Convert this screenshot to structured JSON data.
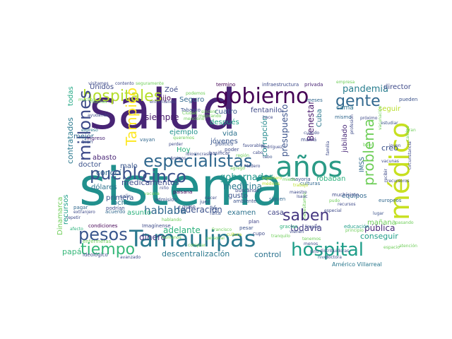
{
  "words": [
    {
      "text": "salud",
      "color": "#482475"
    },
    {
      "text": "sistema",
      "color": "#21908d"
    },
    {
      "text": "Tamaulipas",
      "color": "#2a788e"
    },
    {
      "text": "años",
      "color": "#2a9a86"
    },
    {
      "text": "médico",
      "color": "#c8e020"
    },
    {
      "text": "gobierno",
      "color": "#440154"
    },
    {
      "text": "especialistas",
      "color": "#31688e"
    },
    {
      "text": "pueblo",
      "color": "#3b528b"
    },
    {
      "text": "hospitales",
      "color": "#b5de2b"
    },
    {
      "text": "hospital",
      "color": "#1f9e89"
    },
    {
      "text": "millones",
      "color": "#3e4a89"
    },
    {
      "text": "pesos",
      "color": "#39568c"
    },
    {
      "text": "tiempo",
      "color": "#35b779"
    },
    {
      "text": "cinco",
      "color": "#3b528b"
    },
    {
      "text": "gente",
      "color": "#31688e"
    },
    {
      "text": "saben",
      "color": "#453781"
    },
    {
      "text": "problema",
      "color": "#6ece58"
    },
    {
      "text": "Tampico",
      "color": "#fde725"
    },
    {
      "text": "pandemia",
      "color": "#287d8e"
    },
    {
      "text": "Zoé",
      "color": "#3e4a89"
    },
    {
      "text": "hijo",
      "color": "#440154"
    },
    {
      "text": "Hoy",
      "color": "#2db27d"
    },
    {
      "text": "siempre",
      "color": "#481a6c"
    },
    {
      "text": "gobernador",
      "color": "#1f968b"
    },
    {
      "text": "medicina",
      "color": "#2a788e"
    },
    {
      "text": "federación",
      "color": "#3b528b"
    },
    {
      "text": "hablaba",
      "color": "#31688e"
    },
    {
      "text": "adelante",
      "color": "#2db27d"
    },
    {
      "text": "todavía",
      "color": "#433e85"
    },
    {
      "text": "dinero",
      "color": "#453781"
    },
    {
      "text": "descentralización",
      "color": "#2a788e"
    },
    {
      "text": "control",
      "color": "#2c728e"
    },
    {
      "text": "papá",
      "color": "#35b779"
    },
    {
      "text": "conseguir",
      "color": "#1f9e89"
    },
    {
      "text": "pública",
      "color": "#482878"
    },
    {
      "text": "mañana",
      "color": "#6ece58"
    },
    {
      "text": "presupuesto",
      "color": "#3b528b"
    },
    {
      "text": "corrupción",
      "color": "#238a8d"
    },
    {
      "text": "Bienestar",
      "color": "#481a6c"
    },
    {
      "text": "Seguro",
      "color": "#31688e"
    },
    {
      "text": "medicamentos",
      "color": "#3e4a89"
    },
    {
      "text": "dólares",
      "color": "#2c728e"
    },
    {
      "text": "doctor",
      "color": "#3b528b"
    },
    {
      "text": "Unidos",
      "color": "#3e4a89"
    },
    {
      "text": "todas",
      "color": "#22a884"
    },
    {
      "text": "contratados",
      "color": "#2a788e"
    },
    {
      "text": "recursos",
      "color": "#1f9e89"
    },
    {
      "text": "Dinamarca",
      "color": "#6ece58"
    },
    {
      "text": "mejor",
      "color": "#31688e"
    },
    {
      "text": "ejemplo",
      "color": "#21918c"
    },
    {
      "text": "vida",
      "color": "#2c728e"
    },
    {
      "text": "después",
      "color": "#1fa187"
    },
    {
      "text": "jóvenes",
      "color": "#39568c"
    },
    {
      "text": "cuatro",
      "color": "#38598c"
    },
    {
      "text": "fentanilo",
      "color": "#3e4a89"
    },
    {
      "text": "casa",
      "color": "#414487"
    },
    {
      "text": "Cuba",
      "color": "#2a788e"
    },
    {
      "text": "jubilado",
      "color": "#482878"
    },
    {
      "text": "IMSS",
      "color": "#31688e"
    },
    {
      "text": "creo",
      "color": "#3b528b"
    },
    {
      "text": "seguir",
      "color": "#b8de29"
    },
    {
      "text": "director",
      "color": "#3e4a89"
    },
    {
      "text": "equipos",
      "color": "#31688e"
    },
    {
      "text": "cama",
      "color": "#2c728e"
    },
    {
      "text": "robaban",
      "color": "#2db27d"
    },
    {
      "text": "gusto",
      "color": "#3b528b"
    },
    {
      "text": "examen",
      "color": "#2c728e"
    },
    {
      "text": "conocí",
      "color": "#31688e"
    },
    {
      "text": "abasto",
      "color": "#482475"
    },
    {
      "text": "malo",
      "color": "#39568c"
    },
    {
      "text": "primera",
      "color": "#3b528b"
    },
    {
      "text": "ocho",
      "color": "#2c728e"
    },
    {
      "text": "asunto",
      "color": "#2db27d"
    },
    {
      "text": "Américo Villarreal",
      "color": "#2a788e"
    },
    {
      "text": "privada",
      "color": "#482475"
    },
    {
      "text": "infraestructura",
      "color": "#3e4a89"
    },
    {
      "text": "termino",
      "color": "#440154"
    },
    {
      "text": "Tabasco",
      "color": "#3b528b"
    },
    {
      "text": "salir",
      "color": "#3b528b"
    },
    {
      "text": "vayan",
      "color": "#31688e"
    },
    {
      "text": "muchísimo",
      "color": "#3e4a89"
    },
    {
      "text": "Imagínense",
      "color": "#3e4a89"
    },
    {
      "text": "pesar",
      "color": "#3b528b"
    },
    {
      "text": "enfermeras",
      "color": "#6ece58"
    },
    {
      "text": "condiciones",
      "color": "#440154"
    },
    {
      "text": "ideológico",
      "color": "#3e4a89"
    },
    {
      "text": "ingreso",
      "color": "#482475"
    },
    {
      "text": "plan",
      "color": "#414487"
    },
    {
      "text": "gracias",
      "color": "#2db27d"
    },
    {
      "text": "nivel",
      "color": "#31688e"
    },
    {
      "text": "educación",
      "color": "#1f9e89"
    },
    {
      "text": "cupo",
      "color": "#3e4a89"
    },
    {
      "text": "recursos",
      "color": "#3e4a89"
    },
    {
      "text": "paisana",
      "color": "#440154"
    },
    {
      "text": "falta",
      "color": "#3b528b"
    },
    {
      "text": "acuerdo",
      "color": "#31688e"
    },
    {
      "text": "podrían",
      "color": "#3e4a89"
    },
    {
      "text": "extranjero",
      "color": "#3e4a89"
    },
    {
      "text": "pagar",
      "color": "#31688e"
    },
    {
      "text": "buscando",
      "color": "#3e4a89"
    },
    {
      "text": "siguen",
      "color": "#31688e"
    },
    {
      "text": "ambiente",
      "color": "#3b528b"
    },
    {
      "text": "político",
      "color": "#3b528b"
    },
    {
      "text": "mayoría",
      "color": "#3b528b"
    },
    {
      "text": "culturas",
      "color": "#31688e"
    },
    {
      "text": "Amigos",
      "color": "#3e4a89"
    },
    {
      "text": "basificar",
      "color": "#3e4a89"
    },
    {
      "text": "poder",
      "color": "#3e4a89"
    },
    {
      "text": "juez",
      "color": "#3b528b"
    },
    {
      "text": "mismo",
      "color": "#31688e"
    },
    {
      "text": "mamá",
      "color": "#3e4a89"
    },
    {
      "text": "meses",
      "color": "#31688e"
    },
    {
      "text": "pueden",
      "color": "#3b528b"
    },
    {
      "text": "tabo",
      "color": "#3b528b"
    },
    {
      "text": "europeos",
      "color": "#31688e"
    },
    {
      "text": "ingeniero",
      "color": "#b8de29"
    },
    {
      "text": "iba",
      "color": "#3b528b"
    },
    {
      "text": "quiso",
      "color": "#3e4a89"
    },
    {
      "text": "admisión",
      "color": "#3b528b"
    },
    {
      "text": "hace",
      "color": "#3e4a89"
    },
    {
      "text": "bien",
      "color": "#3b528b"
    },
    {
      "text": "expreso",
      "color": "#2a788e"
    },
    {
      "text": "lugar",
      "color": "#3b528b"
    },
    {
      "text": "comprar",
      "color": "#6ece58"
    },
    {
      "text": "atención",
      "color": "#6ece58"
    },
    {
      "text": "próximo",
      "color": "#3e4a89"
    },
    {
      "text": "estudiar",
      "color": "#3b528b"
    },
    {
      "text": "muchos",
      "color": "#6ece58"
    },
    {
      "text": "repetir",
      "color": "#3e4a89"
    },
    {
      "text": "afecto",
      "color": "#2db27d"
    },
    {
      "text": "humanos",
      "color": "#6ece58"
    },
    {
      "text": "avanzado",
      "color": "#3e4a89"
    },
    {
      "text": "doctora",
      "color": "#3e4a89"
    },
    {
      "text": "mejorando",
      "color": "#6ece58"
    },
    {
      "text": "hablando",
      "color": "#6ece58"
    },
    {
      "text": "trabajo",
      "color": "#b8de29"
    },
    {
      "text": "médicos",
      "color": "#b8de29"
    },
    {
      "text": "tenemos",
      "color": "#6ece58"
    },
    {
      "text": "principio",
      "color": "#6ece58"
    },
    {
      "text": "vacuna",
      "color": "#6ece58"
    },
    {
      "text": "necesitamos",
      "color": "#6ece58"
    },
    {
      "text": "miedo",
      "color": "#6ece58"
    },
    {
      "text": "limpiar",
      "color": "#3e4a89"
    },
    {
      "text": "distribuidoras",
      "color": "#3b528b"
    },
    {
      "text": "niño",
      "color": "#3e4a89"
    },
    {
      "text": "Francisco",
      "color": "#6ece58"
    },
    {
      "text": "sino",
      "color": "#3e4a89"
    },
    {
      "text": "pudo",
      "color": "#6ece58"
    },
    {
      "text": "idiosincrasia",
      "color": "#3e4a89"
    },
    {
      "text": "cultura",
      "color": "#b8de29"
    },
    {
      "text": "tranquilo",
      "color": "#6ece58"
    },
    {
      "text": "recibir",
      "color": "#3e4a89"
    },
    {
      "text": "enfrentando",
      "color": "#3e4a89"
    },
    {
      "text": "seguramente",
      "color": "#6ece58"
    },
    {
      "text": "contento",
      "color": "#3e4a89"
    },
    {
      "text": "visitamos",
      "color": "#3e4a89"
    },
    {
      "text": "podemos",
      "color": "#6ece58"
    },
    {
      "text": "ayudando",
      "color": "#3e4a89"
    },
    {
      "text": "mencionó",
      "color": "#6ece58"
    },
    {
      "text": "Ciudad",
      "color": "#6ece58"
    },
    {
      "text": "sincero",
      "color": "#6ece58"
    },
    {
      "text": "favorables",
      "color": "#3e4a89"
    },
    {
      "text": "Rodríguez",
      "color": "#3e4a89"
    },
    {
      "text": "agregó",
      "color": "#6ece58"
    },
    {
      "text": "Madero",
      "color": "#3e4a89"
    },
    {
      "text": "recursoros",
      "color": "#3e4a89"
    },
    {
      "text": "familia",
      "color": "#3e4a89"
    },
    {
      "text": "cuando",
      "color": "#3e4a89"
    },
    {
      "text": "circunstancia",
      "color": "#3e4a89"
    },
    {
      "text": "queremos",
      "color": "#6ece58"
    },
    {
      "text": "calidad",
      "color": "#6ece58"
    },
    {
      "text": "espacio",
      "color": "#6ece58"
    },
    {
      "text": "vacunas",
      "color": "#3e4a89"
    },
    {
      "text": "pasando",
      "color": "#6ece58"
    },
    {
      "text": "nacer",
      "color": "#3e4a89"
    },
    {
      "text": "personal",
      "color": "#6ece58"
    },
    {
      "text": "vienen",
      "color": "#3e4a89"
    },
    {
      "text": "menos",
      "color": "#3e4a89"
    },
    {
      "text": "región",
      "color": "#6ece58"
    },
    {
      "text": "perder",
      "color": "#3e4a89"
    },
    {
      "text": "cabo",
      "color": "#3e4a89"
    },
    {
      "text": "profesión",
      "color": "#3e4a89"
    },
    {
      "text": "empresa",
      "color": "#6ece58"
    },
    {
      "text": "muchas",
      "color": "#6ece58"
    },
    {
      "text": "Isaac",
      "color": "#3e4a89"
    },
    {
      "text": "maestro",
      "color": "#3e4a89"
    },
    {
      "text": "especial",
      "color": "#3e4a89"
    },
    {
      "text": "buen",
      "color": "#6ece58"
    },
    {
      "text": "vacunación",
      "color": "#6ece58"
    },
    {
      "text": "joven",
      "color": "#3e4a89"
    },
    {
      "text": "gran",
      "color": "#6ece58"
    }
  ]
}
